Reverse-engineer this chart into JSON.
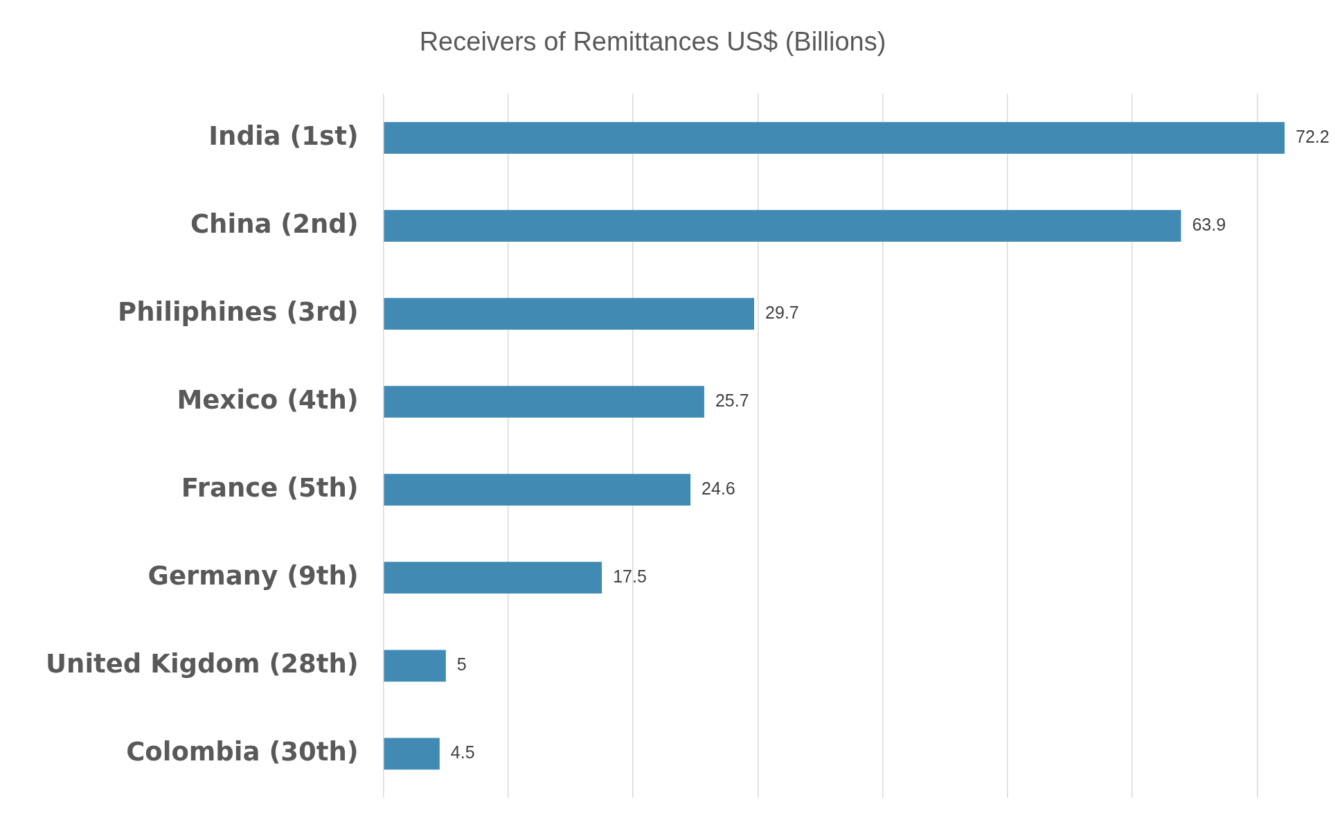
{
  "chart_data": {
    "type": "bar",
    "orientation": "horizontal",
    "title": "Receivers of Remittances US$ (Billions)",
    "categories": [
      "India (1st)",
      "China (2nd)",
      "Philiphines (3rd)",
      "Mexico (4th)",
      "France (5th)",
      "Germany (9th)",
      "United Kigdom (28th)",
      "Colombia (30th)"
    ],
    "values": [
      72.2,
      63.9,
      29.7,
      25.7,
      24.6,
      17.5,
      5,
      4.5
    ],
    "color": "#418ab3",
    "xticks": [
      {
        "value": 0,
        "label": null
      },
      {
        "value": 10,
        "label": null
      },
      {
        "value": 20,
        "label": null
      },
      {
        "value": 30,
        "label": null
      },
      {
        "value": 40,
        "label": null
      },
      {
        "value": 50,
        "label": null
      },
      {
        "value": 60,
        "label": null
      },
      {
        "value": 70,
        "label": null
      }
    ],
    "grid": "x",
    "tick_labels": "y",
    "data_labels": true
  }
}
